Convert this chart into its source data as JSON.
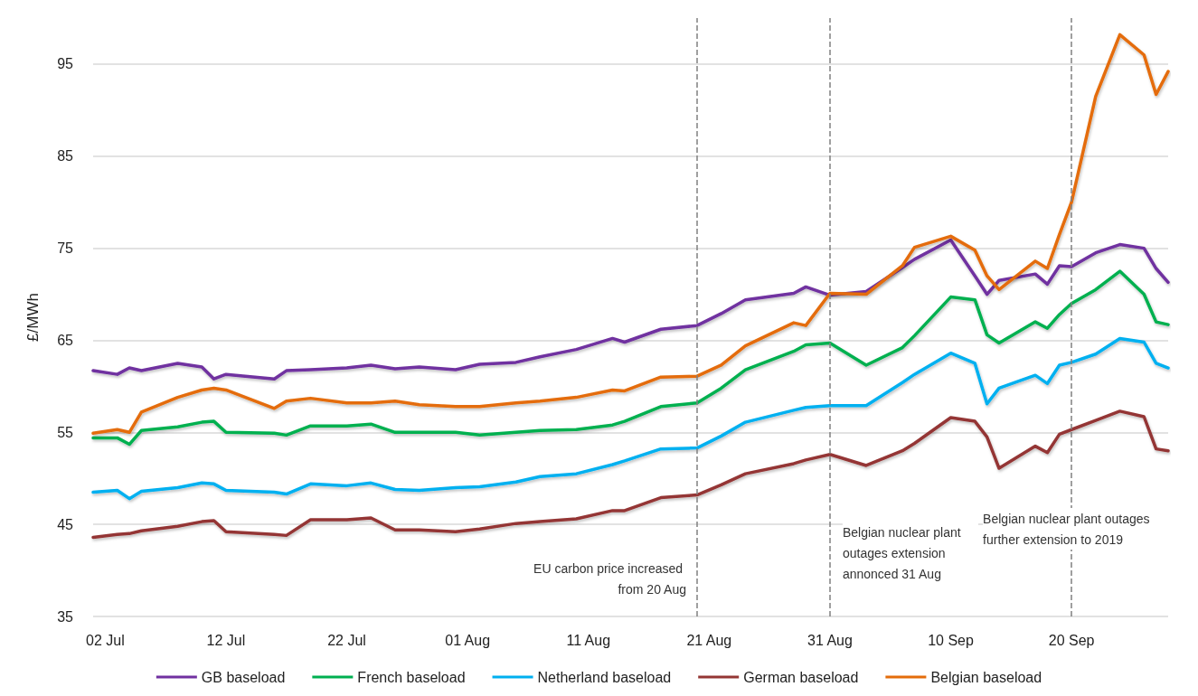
{
  "chart_data": {
    "type": "line",
    "ylabel": "£/MWh",
    "x": [
      "--07-01",
      "--07-03",
      "--07-04",
      "--07-05",
      "--07-08",
      "--07-10",
      "--07-11",
      "--07-12",
      "--07-16",
      "--07-17",
      "--07-19",
      "--07-22",
      "--07-24",
      "--07-26",
      "--07-28",
      "--07-31",
      "--08-02",
      "--08-05",
      "--08-07",
      "--08-10",
      "--08-13",
      "--08-14",
      "--08-17",
      "--08-20",
      "--08-22",
      "--08-24",
      "--08-28",
      "--08-29",
      "--08-31",
      "--09-03",
      "--09-06",
      "--09-07",
      "--09-10",
      "--09-12",
      "--09-13",
      "--09-14",
      "--09-17",
      "--09-18",
      "--09-19",
      "--09-20",
      "--09-22",
      "--09-24",
      "--09-26",
      "--09-27",
      "--09-28"
    ],
    "series": [
      {
        "name": "GB baseload",
        "color": "#7030a0",
        "values": [
          61.7,
          61.3,
          62.0,
          61.7,
          62.5,
          62.1,
          60.8,
          61.3,
          60.8,
          61.7,
          61.8,
          62.0,
          62.3,
          61.9,
          62.1,
          61.8,
          62.4,
          62.6,
          63.2,
          64.0,
          65.2,
          64.8,
          66.2,
          66.6,
          67.9,
          69.4,
          70.1,
          70.8,
          69.9,
          70.3,
          72.9,
          73.8,
          75.9,
          72.0,
          70.0,
          71.5,
          72.2,
          71.1,
          73.1,
          73.0,
          74.5,
          75.4,
          75.0,
          72.8,
          71.3
        ]
      },
      {
        "name": "French baseload",
        "color": "#00b050",
        "values": [
          54.4,
          54.4,
          53.7,
          55.2,
          55.6,
          56.1,
          56.2,
          55.0,
          54.9,
          54.7,
          55.7,
          55.7,
          55.9,
          55.0,
          55.0,
          55.0,
          54.7,
          55.0,
          55.2,
          55.3,
          55.8,
          56.2,
          57.8,
          58.2,
          59.8,
          61.8,
          63.8,
          64.5,
          64.7,
          62.3,
          64.2,
          65.5,
          69.7,
          69.4,
          65.6,
          64.7,
          67.0,
          66.3,
          67.8,
          69.0,
          70.5,
          72.5,
          70.0,
          67.0,
          66.7
        ]
      },
      {
        "name": "Netherland baseload",
        "color": "#00b0f0",
        "values": [
          48.5,
          48.7,
          47.8,
          48.6,
          49.0,
          49.5,
          49.4,
          48.7,
          48.5,
          48.3,
          49.4,
          49.2,
          49.5,
          48.8,
          48.7,
          49.0,
          49.1,
          49.6,
          50.2,
          50.5,
          51.5,
          51.9,
          53.2,
          53.3,
          54.6,
          56.1,
          57.4,
          57.7,
          57.9,
          57.9,
          60.4,
          61.3,
          63.6,
          62.5,
          58.1,
          59.8,
          61.2,
          60.3,
          62.3,
          62.6,
          63.5,
          65.2,
          64.8,
          62.5,
          62.0
        ]
      },
      {
        "name": "German baseload",
        "color": "#943634",
        "values": [
          43.6,
          43.9,
          44.0,
          44.3,
          44.8,
          45.3,
          45.4,
          44.2,
          43.9,
          43.8,
          45.5,
          45.5,
          45.7,
          44.4,
          44.4,
          44.2,
          44.5,
          45.1,
          45.3,
          45.6,
          46.5,
          46.5,
          47.9,
          48.2,
          49.3,
          50.5,
          51.6,
          52.0,
          52.6,
          51.4,
          53.0,
          53.8,
          56.6,
          56.2,
          54.5,
          51.1,
          53.5,
          52.8,
          54.8,
          55.3,
          56.3,
          57.3,
          56.7,
          53.2,
          53.0
        ]
      },
      {
        "name": "Belgian baseload",
        "color": "#e46c0a",
        "values": [
          54.9,
          55.3,
          55.0,
          57.2,
          58.8,
          59.6,
          59.8,
          59.6,
          57.6,
          58.4,
          58.7,
          58.2,
          58.2,
          58.4,
          58.0,
          57.8,
          57.8,
          58.2,
          58.4,
          58.8,
          59.6,
          59.5,
          61.0,
          61.1,
          62.3,
          64.4,
          66.9,
          66.6,
          70.1,
          70.0,
          73.1,
          75.1,
          76.3,
          74.8,
          72.0,
          70.5,
          73.6,
          72.8,
          76.5,
          80.0,
          91.5,
          98.2,
          96.0,
          91.7,
          94.2
        ]
      }
    ],
    "xlim": [
      "--07-01",
      "--09-28"
    ],
    "xticks": [
      {
        "value": "--07-02",
        "label": "02 Jul"
      },
      {
        "value": "--07-12",
        "label": "12 Jul"
      },
      {
        "value": "--07-22",
        "label": "22 Jul"
      },
      {
        "value": "--08-01",
        "label": "01 Aug"
      },
      {
        "value": "--08-11",
        "label": "11 Aug"
      },
      {
        "value": "--08-21",
        "label": "21 Aug"
      },
      {
        "value": "--08-31",
        "label": "31 Aug"
      },
      {
        "value": "--09-10",
        "label": "10 Sep"
      },
      {
        "value": "--09-20",
        "label": "20 Sep"
      }
    ],
    "ylim": [
      35,
      100
    ],
    "yticks": [
      35,
      45,
      55,
      65,
      75,
      85,
      95
    ],
    "grid": "y",
    "legend": "bottom",
    "marker": "none",
    "line_style": "solid",
    "ref_lines": [
      {
        "axis": "x",
        "value": "--08-20",
        "label": "EU carbon price increased from 20 Aug",
        "color": "#808080",
        "line_style": "dashed"
      },
      {
        "axis": "x",
        "value": "--08-31",
        "label": "Belgian nuclear plant outages extension annonced 31 Aug",
        "color": "#808080",
        "line_style": "dashed"
      },
      {
        "axis": "x",
        "value": "--09-20",
        "label": "Belgian nuclear plant outages further extension to 2019",
        "color": "#808080",
        "line_style": "dashed"
      }
    ]
  }
}
